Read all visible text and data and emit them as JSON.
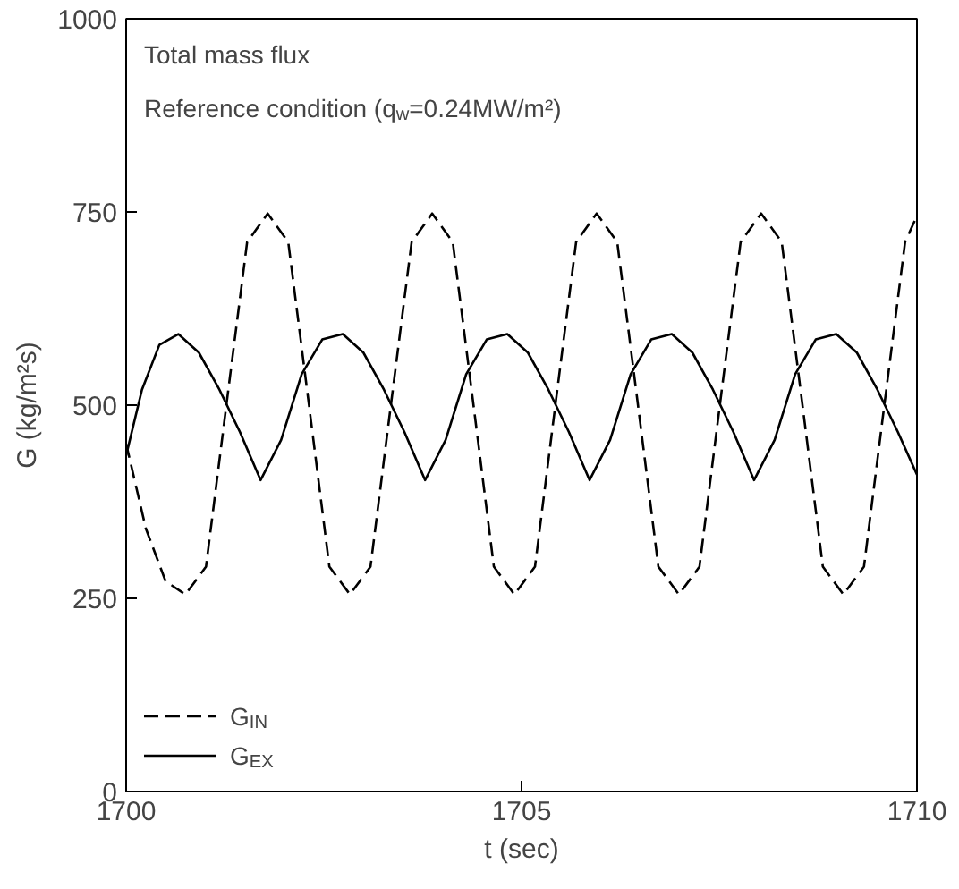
{
  "chart_data": {
    "type": "line",
    "xlabel": "t (sec)",
    "ylabel": "G (kg/m²s)",
    "annotations": [
      "Total mass flux",
      "Reference condition (q$_{w}$=0.24MW/m²)"
    ],
    "xlim": [
      1700,
      1710
    ],
    "ylim": [
      0,
      1000
    ],
    "xticks": [
      1700,
      1705,
      1710
    ],
    "yticks": [
      0,
      250,
      500,
      750,
      1000
    ],
    "grid": false,
    "legend": "bottom left",
    "series": [
      {
        "name": "G$_{IN}$",
        "color": "#000000",
        "line_style": "dashed",
        "x": [
          1700,
          1700.25,
          1700.5,
          1700.75,
          1701.01,
          1701.27,
          1701.53,
          1701.79,
          1702.05,
          1702.31,
          1702.57,
          1702.83,
          1703.09,
          1703.35,
          1703.61,
          1703.87,
          1704.13,
          1704.39,
          1704.65,
          1704.91,
          1705.17,
          1705.43,
          1705.69,
          1705.95,
          1706.21,
          1706.47,
          1706.73,
          1706.99,
          1707.25,
          1707.51,
          1707.77,
          1708.03,
          1708.29,
          1708.55,
          1708.81,
          1709.07,
          1709.33,
          1709.59,
          1709.85,
          1710
        ],
        "values": [
          450,
          340,
          272,
          255,
          291,
          502,
          711,
          748,
          711,
          502,
          291,
          255,
          291,
          502,
          711,
          748,
          711,
          502,
          291,
          255,
          291,
          502,
          711,
          748,
          711,
          502,
          291,
          255,
          291,
          502,
          711,
          748,
          711,
          502,
          291,
          255,
          291,
          502,
          711,
          745
        ]
      },
      {
        "name": "G$_{EX}$",
        "color": "#000000",
        "line_style": "solid",
        "x": [
          1700,
          1700.2,
          1700.42,
          1700.66,
          1700.92,
          1701.18,
          1701.44,
          1701.7,
          1701.96,
          1702.22,
          1702.48,
          1702.74,
          1703.0,
          1703.26,
          1703.52,
          1703.78,
          1704.04,
          1704.3,
          1704.56,
          1704.82,
          1705.08,
          1705.34,
          1705.6,
          1705.86,
          1706.12,
          1706.38,
          1706.64,
          1706.9,
          1707.16,
          1707.42,
          1707.68,
          1707.94,
          1708.2,
          1708.46,
          1708.72,
          1708.98,
          1709.24,
          1709.5,
          1709.76,
          1710
        ],
        "values": [
          435,
          520,
          578,
          592,
          568,
          520,
          465,
          403,
          455,
          540,
          585,
          592,
          568,
          520,
          465,
          403,
          455,
          540,
          585,
          592,
          568,
          520,
          465,
          403,
          455,
          540,
          585,
          592,
          568,
          520,
          465,
          403,
          455,
          540,
          585,
          592,
          568,
          520,
          465,
          410
        ]
      }
    ]
  }
}
